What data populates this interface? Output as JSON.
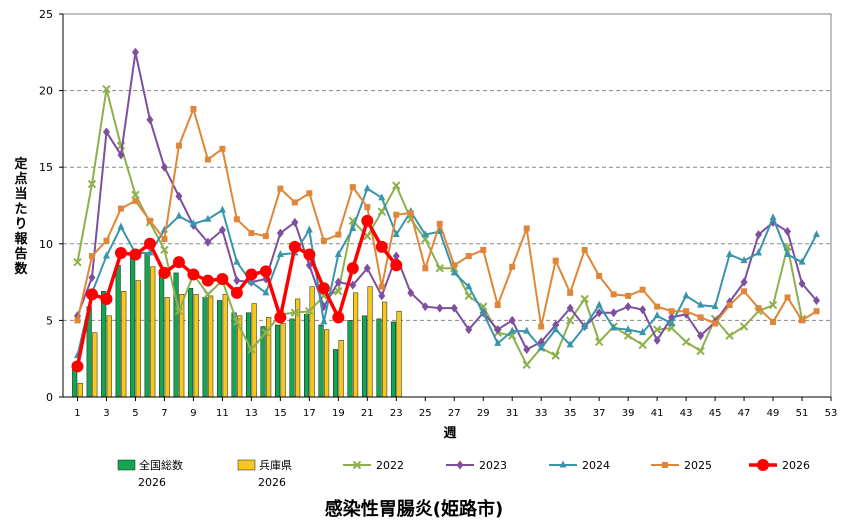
{
  "chart_data": {
    "type": "bar+line",
    "title": "感染性胃腸炎(姫路市)",
    "xlabel": "週",
    "ylabel": "定点当たり報告数",
    "ylim": [
      0,
      25
    ],
    "xlim": [
      0,
      53
    ],
    "yticks": [
      0,
      5,
      10,
      15,
      20,
      25
    ],
    "xticks": [
      1,
      3,
      5,
      7,
      9,
      11,
      13,
      15,
      17,
      19,
      21,
      23,
      25,
      27,
      29,
      31,
      33,
      35,
      37,
      39,
      41,
      43,
      45,
      47,
      49,
      51,
      53
    ],
    "grid": "horizontal dashed",
    "legend_position": "bottom",
    "bars": [
      {
        "name": "全国総数",
        "name2": "2026",
        "color": "#14a550",
        "weeks": [
          1,
          2,
          3,
          4,
          5,
          6,
          7,
          8,
          9,
          10,
          11,
          12,
          13,
          14,
          15,
          16,
          17,
          18,
          19,
          20,
          21,
          22,
          23
        ],
        "values": [
          2.2,
          5.9,
          6.9,
          8.6,
          9.5,
          9.4,
          8.3,
          8.1,
          7.1,
          6.5,
          6.3,
          5.5,
          5.5,
          4.6,
          4.7,
          5.1,
          5.4,
          4.7,
          3.1,
          5.0,
          5.3,
          5.1,
          4.9
        ]
      },
      {
        "name": "兵庫県",
        "name2": "2026",
        "color": "#f7c81c",
        "weeks": [
          1,
          2,
          3,
          4,
          5,
          6,
          7,
          8,
          9,
          10,
          11,
          12,
          13,
          14,
          15,
          16,
          17,
          18,
          19,
          20,
          21,
          22,
          23
        ],
        "values": [
          0.9,
          4.2,
          5.3,
          6.9,
          7.6,
          8.5,
          6.5,
          6.7,
          6.7,
          6.6,
          6.7,
          5.3,
          6.1,
          5.2,
          4.8,
          6.4,
          7.2,
          4.4,
          3.7,
          6.8,
          7.2,
          6.2,
          5.6
        ]
      }
    ],
    "series": [
      {
        "name": "2022",
        "color": "#8db04d",
        "marker": "x",
        "values": [
          8.8,
          13.9,
          20.1,
          16.4,
          13.2,
          11.4,
          9.6,
          5.6,
          8.0,
          6.7,
          7.6,
          4.9,
          3.1,
          4.2,
          5.4,
          5.5,
          5.6,
          6.6,
          6.9,
          11.5,
          10.5,
          12.1,
          13.8,
          11.6,
          10.3,
          8.4,
          8.4,
          6.6,
          5.9,
          4.2,
          4.0,
          2.1,
          3.2,
          2.7,
          5.0,
          6.4,
          3.6,
          4.6,
          4.0,
          3.4,
          4.4,
          4.5,
          3.6,
          3.0,
          5.1,
          4.0,
          4.6,
          5.6,
          6.0,
          9.8,
          5.1,
          null
        ]
      },
      {
        "name": "2023",
        "color": "#7d4f9e",
        "marker": "diamond",
        "values": [
          5.3,
          7.8,
          17.3,
          15.8,
          22.5,
          18.1,
          15.0,
          13.1,
          11.2,
          10.1,
          10.9,
          7.6,
          7.5,
          7.7,
          10.7,
          11.4,
          8.6,
          5.9,
          7.5,
          7.3,
          8.4,
          6.6,
          9.2,
          6.8,
          5.9,
          5.8,
          5.8,
          4.4,
          5.5,
          4.4,
          5.0,
          3.1,
          3.6,
          4.7,
          5.8,
          4.6,
          5.5,
          5.5,
          5.9,
          5.7,
          3.7,
          5.2,
          5.4,
          4.0,
          4.9,
          6.2,
          7.5,
          10.6,
          11.4,
          10.8,
          7.4,
          6.3
        ]
      },
      {
        "name": "2024",
        "color": "#3995ac",
        "marker": "triangle",
        "values": [
          2.7,
          6.8,
          9.2,
          11.1,
          9.4,
          9.4,
          10.9,
          11.8,
          11.3,
          11.6,
          12.2,
          8.8,
          7.5,
          6.8,
          9.3,
          9.4,
          10.9,
          4.9,
          9.3,
          11.0,
          13.6,
          13.0,
          10.6,
          12.1,
          10.6,
          10.8,
          8.1,
          7.2,
          5.5,
          3.5,
          4.3,
          4.3,
          3.2,
          4.4,
          3.4,
          4.6,
          6.0,
          4.5,
          4.4,
          4.2,
          5.3,
          4.8,
          6.6,
          6.0,
          5.9,
          9.3,
          8.9,
          9.4,
          11.7,
          9.3,
          8.8,
          10.6
        ]
      },
      {
        "name": "2025",
        "color": "#e08638",
        "marker": "square",
        "values": [
          5.0,
          9.2,
          10.2,
          12.3,
          12.8,
          11.5,
          10.3,
          16.4,
          18.8,
          15.5,
          16.2,
          11.6,
          10.7,
          10.5,
          13.6,
          12.7,
          13.3,
          10.2,
          10.6,
          13.7,
          12.4,
          7.2,
          11.9,
          12.0,
          8.4,
          11.3,
          8.6,
          9.2,
          9.6,
          6.0,
          8.5,
          11.0,
          4.6,
          8.9,
          6.8,
          9.6,
          7.9,
          6.7,
          6.6,
          7.0,
          5.9,
          5.6,
          5.6,
          5.2,
          4.8,
          6.0,
          6.9,
          5.8,
          4.9,
          6.5,
          5.0,
          5.6
        ]
      },
      {
        "name": "2026",
        "color": "#ff0000",
        "marker": "circle",
        "values": [
          2.0,
          6.7,
          6.4,
          9.4,
          9.3,
          10.0,
          8.1,
          8.8,
          8.0,
          7.6,
          7.7,
          6.8,
          8.0,
          8.2,
          5.2,
          9.8,
          9.3,
          7.1,
          5.2,
          8.4,
          11.5,
          9.8,
          8.6
        ]
      }
    ]
  }
}
